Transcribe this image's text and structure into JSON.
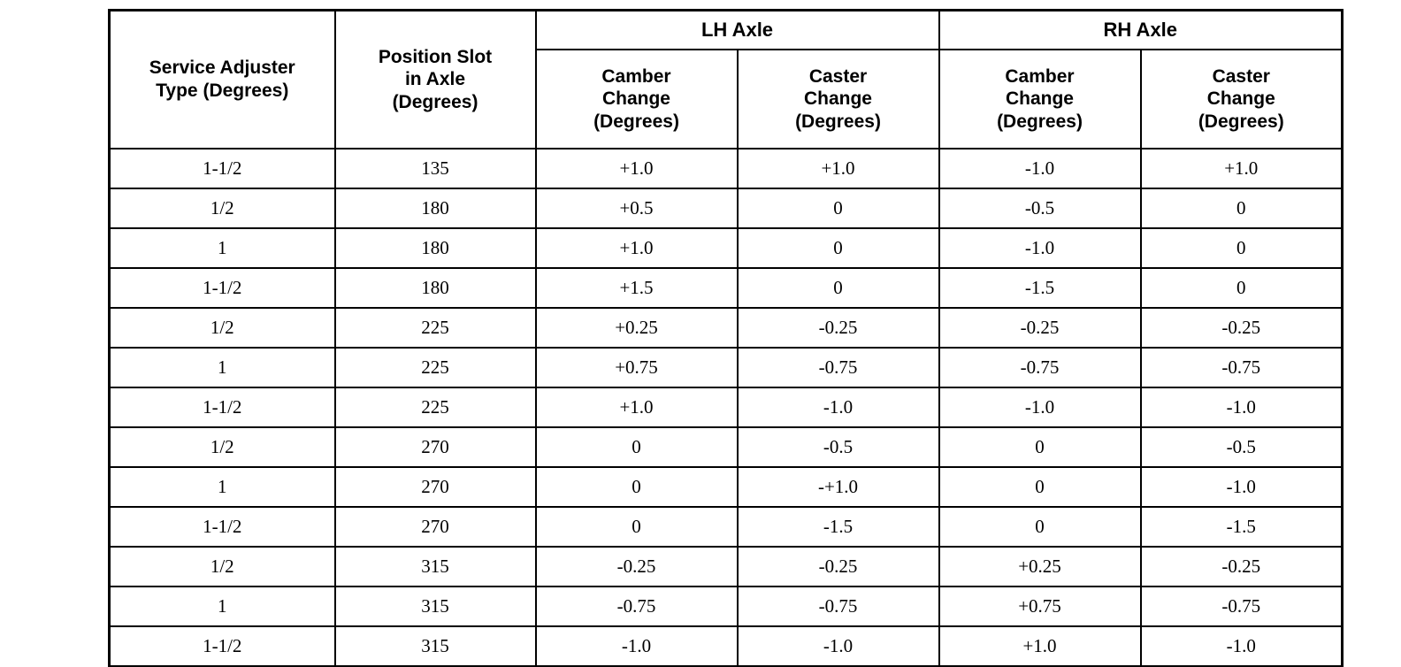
{
  "table": {
    "title_semantic": "Service adjuster camber and caster change table",
    "header_row1": {
      "lh_axle": "LH Axle",
      "rh_axle": "RH Axle"
    },
    "header_row2": {
      "service_adjuster": "Service Adjuster\nType (Degrees)",
      "position_slot": "Position Slot\nin Axle\n(Degrees)",
      "lh_camber": "Camber\nChange\n(Degrees)",
      "lh_caster": "Caster\nChange\n(Degrees)",
      "rh_camber": "Camber\nChange\n(Degrees)",
      "rh_caster": "Caster\nChange\n(Degrees)"
    },
    "rows": [
      [
        "1-1/2",
        "135",
        "+1.0",
        "+1.0",
        "-1.0",
        "+1.0"
      ],
      [
        "1/2",
        "180",
        "+0.5",
        "0",
        "-0.5",
        "0"
      ],
      [
        "1",
        "180",
        "+1.0",
        "0",
        "-1.0",
        "0"
      ],
      [
        "1-1/2",
        "180",
        "+1.5",
        "0",
        "-1.5",
        "0"
      ],
      [
        "1/2",
        "225",
        "+0.25",
        "-0.25",
        "-0.25",
        "-0.25"
      ],
      [
        "1",
        "225",
        "+0.75",
        "-0.75",
        "-0.75",
        "-0.75"
      ],
      [
        "1-1/2",
        "225",
        "+1.0",
        "-1.0",
        "-1.0",
        "-1.0"
      ],
      [
        "1/2",
        "270",
        "0",
        "-0.5",
        "0",
        "-0.5"
      ],
      [
        "1",
        "270",
        "0",
        "-+1.0",
        "0",
        "-1.0"
      ],
      [
        "1-1/2",
        "270",
        "0",
        "-1.5",
        "0",
        "-1.5"
      ],
      [
        "1/2",
        "315",
        "-0.25",
        "-0.25",
        "+0.25",
        "-0.25"
      ],
      [
        "1",
        "315",
        "-0.75",
        "-0.75",
        "+0.75",
        "-0.75"
      ],
      [
        "1-1/2",
        "315",
        "-1.0",
        "-1.0",
        "+1.0",
        "-1.0"
      ]
    ],
    "colors": {
      "border": "#000000",
      "text": "#000000",
      "background": "#ffffff"
    }
  }
}
